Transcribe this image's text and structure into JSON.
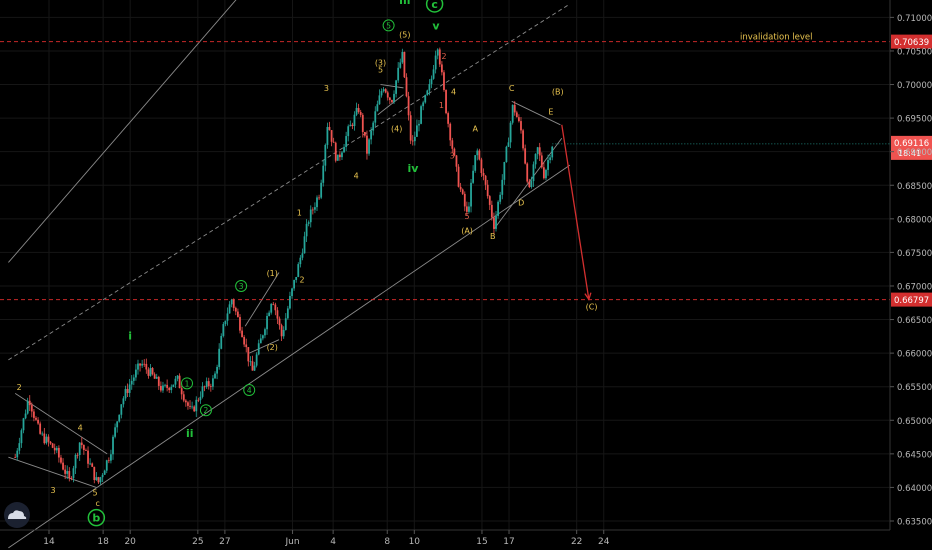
{
  "chart_data": {
    "type": "candlestick",
    "title": "",
    "xlabel": "",
    "ylabel": "",
    "ylim": [
      0.633,
      0.715
    ],
    "x_ticks": [
      {
        "label": "14",
        "day": 14
      },
      {
        "label": "18",
        "day": 18
      },
      {
        "label": "20",
        "day": 20
      },
      {
        "label": "25",
        "day": 25
      },
      {
        "label": "27",
        "day": 27
      },
      {
        "label": "Jun",
        "day": 32
      },
      {
        "label": "4",
        "day": 35
      },
      {
        "label": "8",
        "day": 39
      },
      {
        "label": "10",
        "day": 41
      },
      {
        "label": "15",
        "day": 46
      },
      {
        "label": "17",
        "day": 48
      },
      {
        "label": "22",
        "day": 53
      },
      {
        "label": "24",
        "day": 55
      }
    ],
    "y_ticks": [
      "0.63500",
      "0.64000",
      "0.64500",
      "0.65000",
      "0.65500",
      "0.66000",
      "0.66500",
      "0.67000",
      "0.67500",
      "0.68000",
      "0.68500",
      "0.69000",
      "0.69500",
      "0.70000",
      "0.70500",
      "0.71000"
    ],
    "price_path": [
      [
        11.5,
        0.6445
      ],
      [
        12.5,
        0.6535
      ],
      [
        13.3,
        0.648
      ],
      [
        14.5,
        0.6455
      ],
      [
        15.5,
        0.641
      ],
      [
        16.3,
        0.647
      ],
      [
        17.0,
        0.6435
      ],
      [
        17.6,
        0.6405
      ],
      [
        18.5,
        0.645
      ],
      [
        19.3,
        0.6525
      ],
      [
        20.0,
        0.6555
      ],
      [
        20.8,
        0.6585
      ],
      [
        21.5,
        0.657
      ],
      [
        22.4,
        0.6545
      ],
      [
        23.5,
        0.656
      ],
      [
        24.5,
        0.651
      ],
      [
        25.3,
        0.6545
      ],
      [
        26.2,
        0.656
      ],
      [
        27.0,
        0.665
      ],
      [
        27.5,
        0.668
      ],
      [
        28.3,
        0.663
      ],
      [
        29.0,
        0.657
      ],
      [
        29.8,
        0.663
      ],
      [
        30.5,
        0.6685
      ],
      [
        31.2,
        0.6625
      ],
      [
        31.8,
        0.668
      ],
      [
        32.5,
        0.6735
      ],
      [
        33.2,
        0.68
      ],
      [
        34.0,
        0.684
      ],
      [
        34.6,
        0.6945
      ],
      [
        35.3,
        0.6885
      ],
      [
        36.1,
        0.693
      ],
      [
        36.9,
        0.6965
      ],
      [
        37.5,
        0.69
      ],
      [
        38.1,
        0.6955
      ],
      [
        38.7,
        0.7
      ],
      [
        39.3,
        0.6975
      ],
      [
        40.1,
        0.7045
      ],
      [
        40.8,
        0.6905
      ],
      [
        41.5,
        0.696
      ],
      [
        42.2,
        0.7
      ],
      [
        42.7,
        0.7065
      ],
      [
        43.4,
        0.6955
      ],
      [
        44.2,
        0.686
      ],
      [
        44.9,
        0.6805
      ],
      [
        45.6,
        0.6905
      ],
      [
        46.3,
        0.6845
      ],
      [
        46.9,
        0.679
      ],
      [
        47.6,
        0.687
      ],
      [
        48.3,
        0.697
      ],
      [
        48.9,
        0.693
      ],
      [
        49.5,
        0.684
      ],
      [
        50.1,
        0.6905
      ],
      [
        50.6,
        0.6865
      ],
      [
        51.2,
        0.6912
      ]
    ],
    "last_price": {
      "label": "0.69116",
      "value": 0.69116,
      "countdown": "18:41"
    },
    "horizontal_levels": [
      {
        "label": "0.70639",
        "value": 0.70639,
        "text": "invalidation level"
      },
      {
        "label": "0.66797",
        "value": 0.66797,
        "text": ""
      }
    ],
    "projection": {
      "from": [
        51.9,
        0.694
      ],
      "to": [
        53.9,
        0.668
      ]
    },
    "labels": [
      {
        "text": "2",
        "day": 11.8,
        "price": 0.6545,
        "color": "#e8c34f",
        "size": 8
      },
      {
        "text": "3",
        "day": 14.3,
        "price": 0.6392,
        "color": "#e8c34f",
        "size": 8
      },
      {
        "text": "4",
        "day": 16.3,
        "price": 0.6485,
        "color": "#e8c34f",
        "size": 8
      },
      {
        "text": "5",
        "day": 17.4,
        "price": 0.6388,
        "color": "#e8c34f",
        "size": 8
      },
      {
        "text": "c",
        "day": 17.6,
        "price": 0.6372,
        "color": "#e8c34f",
        "size": 8
      },
      {
        "text": "i",
        "day": 20.0,
        "price": 0.662,
        "color": "#22c03a",
        "size": 11
      },
      {
        "text": "ii",
        "day": 24.4,
        "price": 0.6475,
        "color": "#22c03a",
        "size": 11
      },
      {
        "text": "(1)",
        "day": 30.5,
        "price": 0.6715,
        "color": "#e8c34f",
        "size": 8
      },
      {
        "text": "(2)",
        "day": 30.5,
        "price": 0.6605,
        "color": "#e8c34f",
        "size": 8
      },
      {
        "text": "1",
        "day": 32.5,
        "price": 0.6805,
        "color": "#e8c34f",
        "size": 8
      },
      {
        "text": "2",
        "day": 32.7,
        "price": 0.6705,
        "color": "#e8c34f",
        "size": 8
      },
      {
        "text": "3",
        "day": 34.5,
        "price": 0.699,
        "color": "#e8c34f",
        "size": 8
      },
      {
        "text": "4",
        "day": 36.7,
        "price": 0.686,
        "color": "#e8c34f",
        "size": 8
      },
      {
        "text": "(3)",
        "day": 38.5,
        "price": 0.7028,
        "color": "#e8c34f",
        "size": 8
      },
      {
        "text": "5",
        "day": 38.5,
        "price": 0.7018,
        "color": "#e8c34f",
        "size": 8
      },
      {
        "text": "(4)",
        "day": 39.7,
        "price": 0.693,
        "color": "#e8c34f",
        "size": 8
      },
      {
        "text": "(5)",
        "day": 40.3,
        "price": 0.707,
        "color": "#e8c34f",
        "size": 8
      },
      {
        "text": "iii",
        "day": 40.3,
        "price": 0.712,
        "color": "#22c03a",
        "size": 11
      },
      {
        "text": "iv",
        "day": 40.9,
        "price": 0.687,
        "color": "#22c03a",
        "size": 11
      },
      {
        "text": "v",
        "day": 42.6,
        "price": 0.7082,
        "color": "#22c03a",
        "size": 11
      },
      {
        "text": "2",
        "day": 43.2,
        "price": 0.7038,
        "color": "#d95e4a",
        "size": 8
      },
      {
        "text": "1",
        "day": 43.0,
        "price": 0.6965,
        "color": "#d95e4a",
        "size": 8
      },
      {
        "text": "4",
        "day": 43.9,
        "price": 0.6985,
        "color": "#e8c34f",
        "size": 8
      },
      {
        "text": "3",
        "day": 43.8,
        "price": 0.689,
        "color": "#d95e4a",
        "size": 8
      },
      {
        "text": "A",
        "day": 45.5,
        "price": 0.693,
        "color": "#e8c34f",
        "size": 8
      },
      {
        "text": "5",
        "day": 44.9,
        "price": 0.68,
        "color": "#d95e4a",
        "size": 8
      },
      {
        "text": "(A)",
        "day": 44.9,
        "price": 0.6778,
        "color": "#e8c34f",
        "size": 8
      },
      {
        "text": "B",
        "day": 46.8,
        "price": 0.677,
        "color": "#e8c34f",
        "size": 8
      },
      {
        "text": "C",
        "day": 48.2,
        "price": 0.699,
        "color": "#e8c34f",
        "size": 8
      },
      {
        "text": "D",
        "day": 48.9,
        "price": 0.682,
        "color": "#e8c34f",
        "size": 8
      },
      {
        "text": "E",
        "day": 51.1,
        "price": 0.6955,
        "color": "#e8c34f",
        "size": 8
      },
      {
        "text": "(B)",
        "day": 51.6,
        "price": 0.6985,
        "color": "#e8c34f",
        "size": 8
      },
      {
        "text": "(C)",
        "day": 54.1,
        "price": 0.6665,
        "color": "#e8c34f",
        "size": 8
      }
    ],
    "circled_labels": [
      {
        "text": "1",
        "day": 24.2,
        "price": 0.6555
      },
      {
        "text": "2",
        "day": 25.6,
        "price": 0.6515
      },
      {
        "text": "3",
        "day": 28.2,
        "price": 0.67
      },
      {
        "text": "4",
        "day": 28.8,
        "price": 0.6545
      },
      {
        "text": "5",
        "day": 39.1,
        "price": 0.7088
      }
    ],
    "big_circled_labels": [
      {
        "text": "c",
        "day": 42.5,
        "price": 0.712
      },
      {
        "text": "b",
        "day": 17.5,
        "price": 0.6355
      }
    ],
    "trend_lines": [
      {
        "from": [
          11.0,
          0.6735
        ],
        "to": [
          31.0,
          0.72
        ],
        "style": "solid"
      },
      {
        "from": [
          11.0,
          0.659
        ],
        "to": [
          52.5,
          0.712
        ],
        "style": "dashed"
      },
      {
        "from": [
          11.0,
          0.631
        ],
        "to": [
          52.5,
          0.688
        ],
        "style": "solid"
      },
      {
        "from": [
          11.5,
          0.654
        ],
        "to": [
          18.3,
          0.645
        ],
        "style": "solid"
      },
      {
        "from": [
          11.0,
          0.6445
        ],
        "to": [
          17.5,
          0.64
        ],
        "style": "solid"
      },
      {
        "from": [
          28.5,
          0.664
        ],
        "to": [
          31.0,
          0.672
        ],
        "style": "solid"
      },
      {
        "from": [
          28.8,
          0.66
        ],
        "to": [
          31.0,
          0.662
        ],
        "style": "solid"
      },
      {
        "from": [
          38.3,
          0.6955
        ],
        "to": [
          40.2,
          0.6985
        ],
        "style": "solid"
      },
      {
        "from": [
          38.5,
          0.7
        ],
        "to": [
          40.2,
          0.6995
        ],
        "style": "solid"
      },
      {
        "from": [
          48.2,
          0.6975
        ],
        "to": [
          51.8,
          0.694
        ],
        "style": "solid"
      },
      {
        "from": [
          46.9,
          0.6785
        ],
        "to": [
          51.9,
          0.692
        ],
        "style": "solid"
      }
    ]
  }
}
